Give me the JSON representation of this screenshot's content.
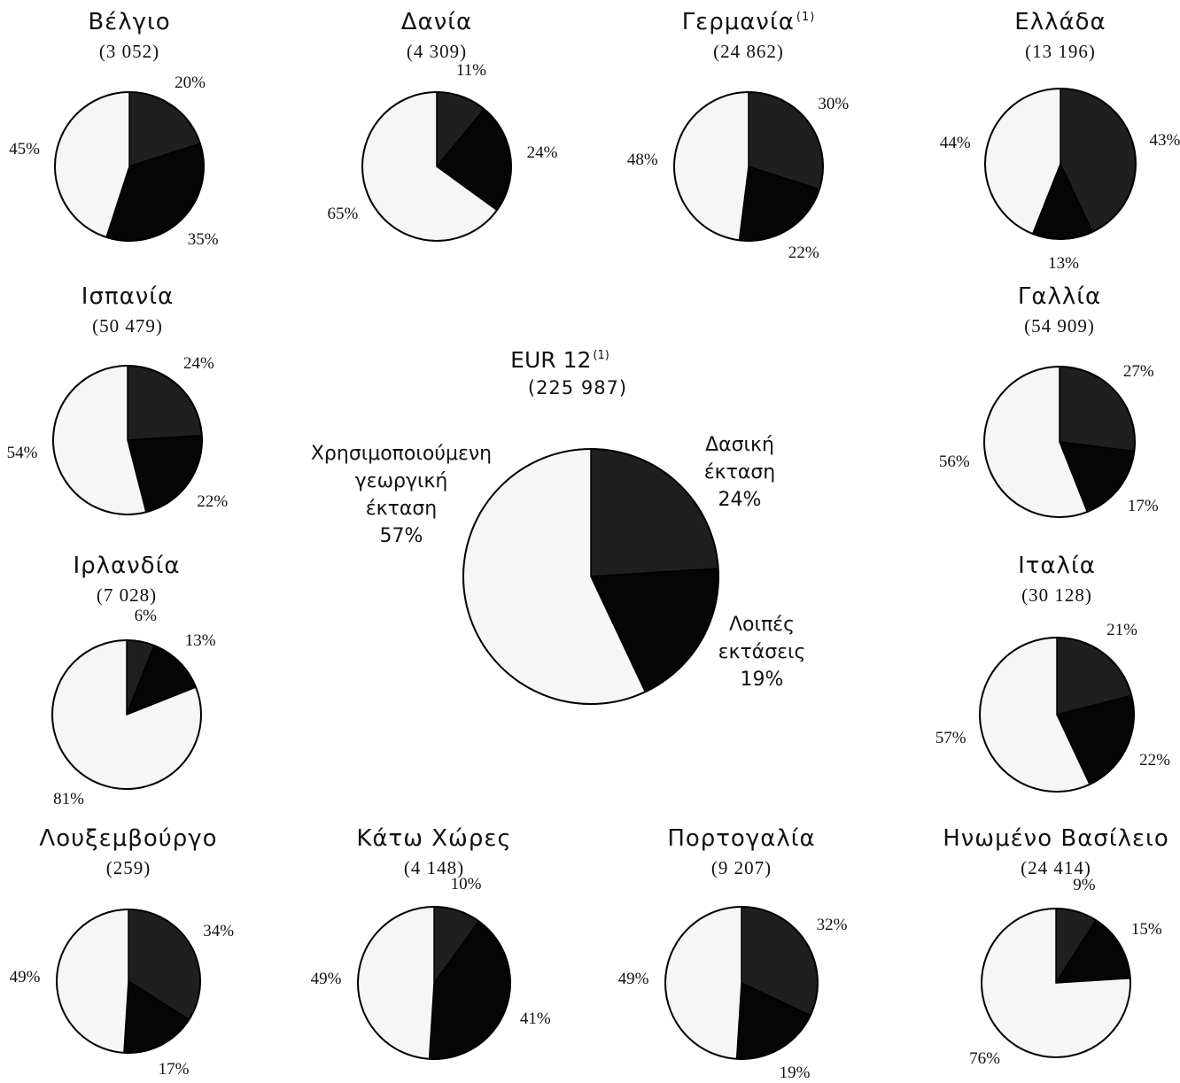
{
  "chart_data": {
    "type": "pie",
    "main": {
      "name": "EUR 12",
      "footnote": "(1)",
      "total": "(225 987)",
      "values": [
        24,
        19,
        57
      ],
      "labels": {
        "forest": [
          "Δασική",
          "έκταση",
          "24%"
        ],
        "other": [
          "Λοιπές",
          "εκτάσεις",
          "19%"
        ],
        "agri": [
          "Χρησιμοποιούμενη",
          "γεωργική",
          "έκταση",
          "57%"
        ]
      }
    },
    "categories": [
      "Δασική έκταση",
      "Λοιπές εκτάσεις",
      "Χρησιμοποιούμενη γεωργική έκταση"
    ],
    "colors": {
      "forest": "#1f1f1f",
      "other": "#050505",
      "agri": "#f6f6f6"
    },
    "countries": [
      {
        "name": "Βέλγιο",
        "total": "(3 052)",
        "values": [
          20,
          35,
          45
        ],
        "labels": [
          "20%",
          "35%",
          "45%"
        ]
      },
      {
        "name": "Δανία",
        "total": "(4 309)",
        "values": [
          11,
          24,
          65
        ],
        "labels": [
          "11%",
          "24%",
          "65%"
        ]
      },
      {
        "name": "Γερμανία",
        "footnote": "(1)",
        "total": "(24 862)",
        "values": [
          30,
          22,
          48
        ],
        "labels": [
          "30%",
          "22%",
          "48%"
        ]
      },
      {
        "name": "Ελλάδα",
        "total": "(13 196)",
        "values": [
          43,
          13,
          44
        ],
        "labels": [
          "43%",
          "13%",
          "44%"
        ]
      },
      {
        "name": "Ισπανία",
        "total": "(50 479)",
        "values": [
          24,
          22,
          54
        ],
        "labels": [
          "24%",
          "22%",
          "54%"
        ]
      },
      {
        "name": "Γαλλία",
        "total": "(54 909)",
        "values": [
          27,
          17,
          56
        ],
        "labels": [
          "27%",
          "17%",
          "56%"
        ]
      },
      {
        "name": "Ιρλανδία",
        "total": "(7 028)",
        "values": [
          6,
          13,
          81
        ],
        "labels": [
          "6%",
          "13%",
          "81%"
        ]
      },
      {
        "name": "Ιταλία",
        "total": "(30 128)",
        "values": [
          21,
          22,
          57
        ],
        "labels": [
          "21%",
          "22%",
          "57%"
        ]
      },
      {
        "name": "Λουξεμβούργο",
        "total": "(259)",
        "values": [
          34,
          17,
          49
        ],
        "labels": [
          "34%",
          "17%",
          "49%"
        ]
      },
      {
        "name": "Κάτω Χώρες",
        "total": "(4 148)",
        "values": [
          10,
          41,
          49
        ],
        "labels": [
          "10%",
          "41%",
          "49%"
        ]
      },
      {
        "name": "Πορτογαλία",
        "total": "(9 207)",
        "values": [
          32,
          19,
          49
        ],
        "labels": [
          "32%",
          "19%",
          "49%"
        ]
      },
      {
        "name": "Ηνωμένο Βασίλειο",
        "total": "(24 414)",
        "values": [
          9,
          15,
          76
        ],
        "labels": [
          "9%",
          "15%",
          "76%"
        ]
      }
    ]
  }
}
